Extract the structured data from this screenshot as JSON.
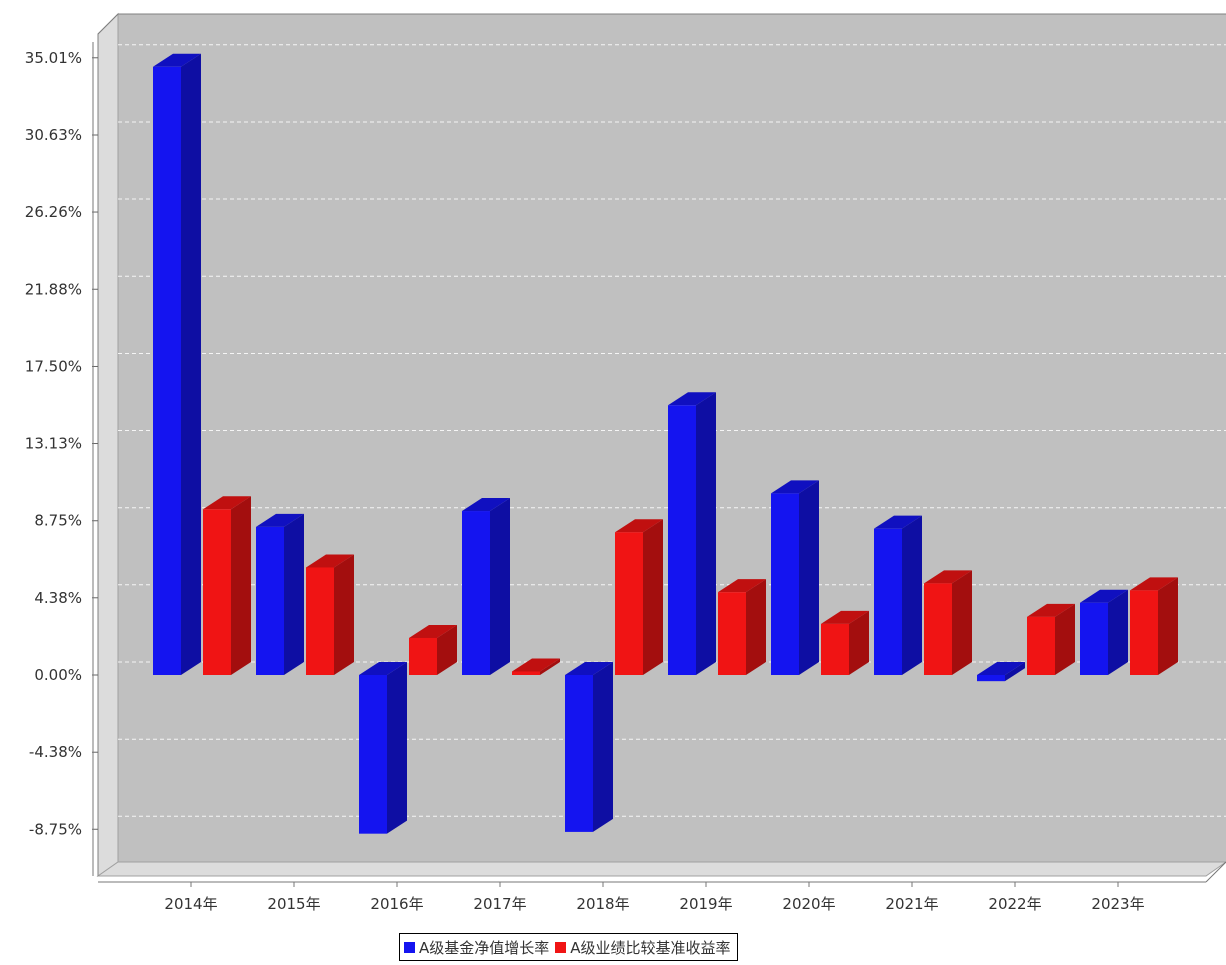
{
  "chart_data": {
    "type": "bar",
    "categories": [
      "2014年",
      "2015年",
      "2016年",
      "2017年",
      "2018年",
      "2019年",
      "2020年",
      "2021年",
      "2022年",
      "2023年"
    ],
    "series": [
      {
        "name": "A级基金净值增长率",
        "color": "#1414f0",
        "values": [
          34.5,
          8.4,
          -9.0,
          9.3,
          -8.9,
          15.3,
          10.3,
          8.3,
          -0.35,
          4.1
        ]
      },
      {
        "name": "A级业绩比较基准收益率",
        "color": "#f01414",
        "values": [
          9.4,
          6.1,
          2.1,
          0.2,
          8.1,
          4.7,
          2.9,
          5.2,
          3.3,
          4.8
        ]
      }
    ],
    "yticks": [
      "35.01%",
      "30.63%",
      "26.26%",
      "21.88%",
      "17.50%",
      "13.13%",
      "8.75%",
      "4.38%",
      "0.00%",
      "-4.38%",
      "-8.75%"
    ],
    "ytick_values": [
      35.01,
      30.63,
      26.26,
      21.88,
      17.5,
      13.13,
      8.75,
      4.38,
      0.0,
      -4.38,
      -8.75
    ],
    "ylim": [
      -10.75,
      37.6
    ],
    "grid": true,
    "legend_position": "bottom-center",
    "title": "",
    "xlabel": "",
    "ylabel": ""
  }
}
